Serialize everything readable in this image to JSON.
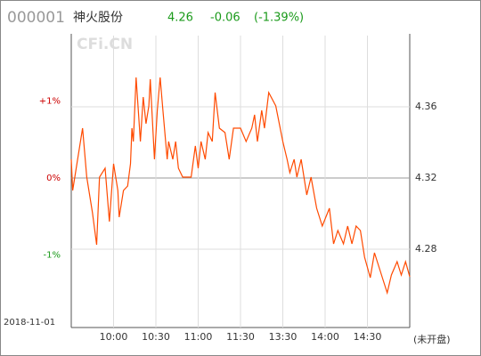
{
  "chart_data": {
    "type": "line",
    "stock_code": "000001",
    "stock_name": "神火股份",
    "price": "4.26",
    "change": "-0.06",
    "change_pct": "(-1.39%)",
    "watermark": "CFi.CN",
    "date": "2018-11-01",
    "status": "(未开盘)",
    "color": "#ff4a00",
    "grid": true,
    "xlim": [
      0,
      240
    ],
    "xticks": [
      {
        "value": 30,
        "label": "10:00"
      },
      {
        "value": 60,
        "label": "10:30"
      },
      {
        "value": 90,
        "label": "11:00"
      },
      {
        "value": 120,
        "label": "11:30"
      },
      {
        "value": 150,
        "label": "13:30"
      },
      {
        "value": 180,
        "label": "14:00"
      },
      {
        "value": 210,
        "label": "14:30"
      }
    ],
    "ylim": [
      4.236,
      4.4
    ],
    "yticks": [
      4.36,
      4.32,
      4.28
    ],
    "y2lim": [
      -1.944,
      1.852
    ],
    "y2ticks": [
      {
        "value": 1,
        "label": "+1%"
      },
      {
        "value": 0,
        "label": "0%"
      },
      {
        "value": -1,
        "label": "-1%"
      }
    ],
    "x": [
      0,
      1,
      8,
      11,
      15,
      18,
      20,
      24,
      27,
      30,
      33,
      34,
      37,
      40,
      42,
      43,
      44,
      46,
      49,
      51,
      53,
      55,
      56,
      59,
      61,
      63,
      65,
      68,
      69,
      72,
      74,
      76,
      79,
      85,
      88,
      90,
      92,
      95,
      97,
      100,
      102,
      105,
      109,
      112,
      115,
      120,
      124,
      128,
      130,
      132,
      135,
      137,
      140,
      145,
      150,
      153,
      155,
      158,
      160,
      163,
      167,
      170,
      174,
      178,
      183,
      186,
      189,
      193,
      196,
      199,
      202,
      205,
      208,
      212,
      215,
      221,
      224,
      227,
      231,
      234,
      237,
      240
    ],
    "values": [
      4.3305,
      4.313,
      4.348,
      4.3205,
      4.3005,
      4.2825,
      4.3205,
      4.3255,
      4.2955,
      4.328,
      4.313,
      4.298,
      4.313,
      4.3155,
      4.328,
      4.348,
      4.3405,
      4.3765,
      4.3405,
      4.3655,
      4.3505,
      4.3605,
      4.3755,
      4.3305,
      4.358,
      4.3765,
      4.358,
      4.3305,
      4.3405,
      4.3305,
      4.3405,
      4.3255,
      4.3205,
      4.3205,
      4.338,
      4.3255,
      4.3405,
      4.3305,
      4.3455,
      4.3405,
      4.368,
      4.348,
      4.3455,
      4.3305,
      4.348,
      4.348,
      4.3405,
      4.348,
      4.3555,
      4.3405,
      4.358,
      4.348,
      4.368,
      4.3605,
      4.3405,
      4.3305,
      4.323,
      4.3305,
      4.3205,
      4.3305,
      4.3105,
      4.3205,
      4.303,
      4.293,
      4.303,
      4.283,
      4.2905,
      4.283,
      4.293,
      4.283,
      4.293,
      4.2905,
      4.2755,
      4.264,
      4.278,
      4.263,
      4.2555,
      4.2655,
      4.273,
      4.2655,
      4.273,
      4.2645
    ]
  }
}
